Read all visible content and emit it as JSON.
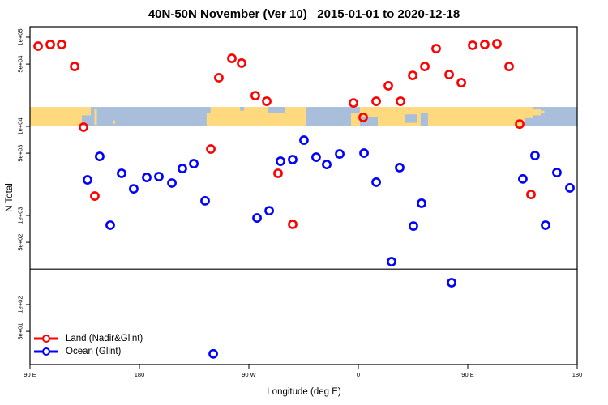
{
  "chart_data": {
    "type": "scatter",
    "title": "40N-50N November (Ver 10)   2015-01-01 to 2020-12-18",
    "xlabel": "Longitude (deg E)",
    "ylabel": "N Total",
    "x_axis": {
      "range_deg": [
        90,
        540
      ],
      "ticks": [
        {
          "value": 90,
          "label": "90 E"
        },
        {
          "value": 180,
          "label": "180"
        },
        {
          "value": 270,
          "label": "90 W"
        },
        {
          "value": 360,
          "label": "0"
        },
        {
          "value": 450,
          "label": "90 E"
        },
        {
          "value": 540,
          "label": "180"
        }
      ]
    },
    "y_axis": {
      "scale": "log10",
      "range": [
        21,
        131000
      ],
      "ticks": [
        {
          "value": 100000,
          "label": "1e+05"
        },
        {
          "value": 50000,
          "label": "5e+04"
        },
        {
          "value": 10000,
          "label": "1e+04"
        },
        {
          "value": 5000,
          "label": "5e+03"
        },
        {
          "value": 1000,
          "label": "1e+03"
        },
        {
          "value": 500,
          "label": "5e+02"
        },
        {
          "value": 100,
          "label": "1e+02"
        },
        {
          "value": 50,
          "label": "5e+01"
        }
      ]
    },
    "threshold_line_n": 250,
    "map_band": {
      "n_range": [
        10200,
        16500
      ],
      "land_color": "#fed97e",
      "ocean_color": "#a9bedb",
      "segments": [
        {
          "type": "land",
          "from": 90,
          "to": 140
        },
        {
          "type": "ocean",
          "from": 140,
          "to": 235.3
        },
        {
          "type": "land",
          "from": 235.3,
          "to": 316.7
        },
        {
          "type": "ocean",
          "from": 316.7,
          "to": 354
        },
        {
          "type": "land",
          "from": 354,
          "to": 497.3
        },
        {
          "type": "ocean",
          "from": 497.3,
          "to": 540
        }
      ],
      "patches": [
        {
          "type": "ocean",
          "from": 132.7,
          "to": 140,
          "frac": [
            0.45,
            1
          ]
        },
        {
          "type": "land",
          "from": 143,
          "to": 145,
          "frac": [
            0.08,
            0.95
          ]
        },
        {
          "type": "land",
          "from": 158,
          "to": 160,
          "frac": [
            0.72,
            0.9
          ]
        },
        {
          "type": "ocean",
          "from": 235.3,
          "to": 238.5,
          "frac": [
            0,
            0.35
          ]
        },
        {
          "type": "ocean",
          "from": 262.7,
          "to": 266,
          "frac": [
            0,
            0.2
          ]
        },
        {
          "type": "ocean",
          "from": 285.3,
          "to": 300,
          "frac": [
            0,
            0.33
          ]
        },
        {
          "type": "ocean",
          "from": 354,
          "to": 361.3,
          "frac": [
            0,
            0.35
          ]
        },
        {
          "type": "ocean",
          "from": 361.3,
          "to": 376,
          "frac": [
            0.55,
            1
          ]
        },
        {
          "type": "ocean",
          "from": 398.7,
          "to": 408,
          "frac": [
            0.4,
            0.85
          ]
        },
        {
          "type": "ocean",
          "from": 411.3,
          "to": 417.3,
          "frac": [
            0.3,
            1
          ]
        },
        {
          "type": "land",
          "from": 497.3,
          "to": 504,
          "frac": [
            0,
            0.6
          ]
        },
        {
          "type": "land",
          "from": 504,
          "to": 510,
          "frac": [
            0.12,
            0.45
          ]
        },
        {
          "type": "land",
          "from": 510,
          "to": 513,
          "frac": [
            0.2,
            0.35
          ]
        }
      ]
    },
    "series": [
      {
        "name": "Land (Nadir&Glint)",
        "color": "#ff0000",
        "points": [
          {
            "lon": 96.7,
            "n": 79400
          },
          {
            "lon": 106.7,
            "n": 82800
          },
          {
            "lon": 116.0,
            "n": 82800
          },
          {
            "lon": 126.7,
            "n": 47000
          },
          {
            "lon": 134.0,
            "n": 9790
          },
          {
            "lon": 143.3,
            "n": 1650
          },
          {
            "lon": 238.7,
            "n": 5560
          },
          {
            "lon": 245.3,
            "n": 35100
          },
          {
            "lon": 256.0,
            "n": 57900
          },
          {
            "lon": 264.0,
            "n": 51200
          },
          {
            "lon": 275.3,
            "n": 22100
          },
          {
            "lon": 284.7,
            "n": 19100
          },
          {
            "lon": 294.0,
            "n": 2970
          },
          {
            "lon": 306.0,
            "n": 794
          },
          {
            "lon": 356.0,
            "n": 18300
          },
          {
            "lon": 364.0,
            "n": 12600
          },
          {
            "lon": 374.7,
            "n": 19100
          },
          {
            "lon": 384.7,
            "n": 28500
          },
          {
            "lon": 394.7,
            "n": 19100
          },
          {
            "lon": 404.7,
            "n": 37300
          },
          {
            "lon": 414.7,
            "n": 47000
          },
          {
            "lon": 424.0,
            "n": 74500
          },
          {
            "lon": 434.7,
            "n": 38100
          },
          {
            "lon": 444.7,
            "n": 30900
          },
          {
            "lon": 454.0,
            "n": 81100
          },
          {
            "lon": 464.0,
            "n": 82800
          },
          {
            "lon": 474.0,
            "n": 84500
          },
          {
            "lon": 484.0,
            "n": 47000
          },
          {
            "lon": 492.7,
            "n": 10600
          },
          {
            "lon": 502.0,
            "n": 1720
          }
        ]
      },
      {
        "name": "Ocean (Glint)",
        "color": "#0000ff",
        "points": [
          {
            "lon": 137.3,
            "n": 2510
          },
          {
            "lon": 147.3,
            "n": 4600
          },
          {
            "lon": 156.0,
            "n": 778
          },
          {
            "lon": 165.3,
            "n": 2970
          },
          {
            "lon": 175.3,
            "n": 1990
          },
          {
            "lon": 186.0,
            "n": 2670
          },
          {
            "lon": 196.0,
            "n": 2730
          },
          {
            "lon": 206.7,
            "n": 2310
          },
          {
            "lon": 215.3,
            "n": 3360
          },
          {
            "lon": 224.7,
            "n": 3810
          },
          {
            "lon": 234.0,
            "n": 1460
          },
          {
            "lon": 240.7,
            "n": 28
          },
          {
            "lon": 276.7,
            "n": 938
          },
          {
            "lon": 286.7,
            "n": 1130
          },
          {
            "lon": 296.0,
            "n": 4060
          },
          {
            "lon": 306.0,
            "n": 4240
          },
          {
            "lon": 315.3,
            "n": 7000
          },
          {
            "lon": 325.3,
            "n": 4510
          },
          {
            "lon": 334.0,
            "n": 3730
          },
          {
            "lon": 344.7,
            "n": 4900
          },
          {
            "lon": 364.7,
            "n": 5010
          },
          {
            "lon": 374.7,
            "n": 2360
          },
          {
            "lon": 387.3,
            "n": 303
          },
          {
            "lon": 394.0,
            "n": 3440
          },
          {
            "lon": 405.3,
            "n": 760
          },
          {
            "lon": 412.0,
            "n": 1370
          },
          {
            "lon": 436.7,
            "n": 176
          },
          {
            "lon": 495.3,
            "n": 2570
          },
          {
            "lon": 505.3,
            "n": 4700
          },
          {
            "lon": 514.0,
            "n": 778
          },
          {
            "lon": 523.3,
            "n": 3030
          },
          {
            "lon": 534.0,
            "n": 2040
          }
        ]
      }
    ],
    "legend": {
      "position": "bottom-left",
      "items": [
        {
          "label": "Land (Nadir&Glint)",
          "color": "#ff0000"
        },
        {
          "label": "Ocean (Glint)",
          "color": "#0000ff"
        }
      ]
    }
  }
}
